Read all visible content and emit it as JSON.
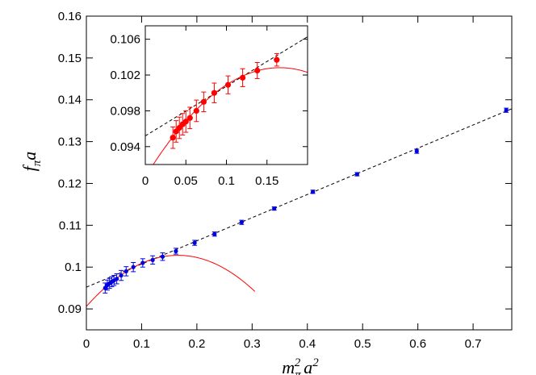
{
  "chart_data": [
    {
      "type": "scatter",
      "title": "",
      "xlabel": "m_π²a²",
      "ylabel": "f_πa",
      "xlabel_parts": {
        "base": "m",
        "sub": "π",
        "sup1": "2",
        "mid": "a",
        "sup2": "2"
      },
      "ylabel_parts": {
        "base": "f",
        "sub": "π",
        "tail": "a"
      },
      "xlim": [
        0,
        0.77
      ],
      "ylim": [
        0.085,
        0.16
      ],
      "xticks": [
        0,
        0.1,
        0.2,
        0.3,
        0.4,
        0.5,
        0.6,
        0.7
      ],
      "xtick_labels": [
        "0",
        "0.1",
        "0.2",
        "0.3",
        "0.4",
        "0.5",
        "0.6",
        "0.7"
      ],
      "yticks": [
        0.09,
        0.1,
        0.11,
        0.12,
        0.13,
        0.14,
        0.15,
        0.16
      ],
      "ytick_labels": [
        "0.09",
        "0.1",
        "0.11",
        "0.12",
        "0.13",
        "0.14",
        "0.15",
        "0.16"
      ],
      "grid": false,
      "legend": "none",
      "series": [
        {
          "color": "#0000e0",
          "marker": "circle",
          "x": [
            0.034,
            0.038,
            0.042,
            0.046,
            0.05,
            0.055,
            0.063,
            0.072,
            0.085,
            0.102,
            0.12,
            0.138,
            0.162,
            0.196,
            0.232,
            0.281,
            0.34,
            0.41,
            0.49,
            0.598,
            0.76
          ],
          "y": [
            0.095,
            0.0957,
            0.0961,
            0.0965,
            0.0968,
            0.0972,
            0.098,
            0.099,
            0.1,
            0.101,
            0.1017,
            0.1025,
            0.1038,
            0.1058,
            0.1079,
            0.1107,
            0.114,
            0.118,
            0.1222,
            0.1277,
            0.1375
          ],
          "yerr": [
            0.0012,
            0.0012,
            0.0012,
            0.0012,
            0.0012,
            0.0012,
            0.0012,
            0.0011,
            0.0011,
            0.001,
            0.001,
            0.0009,
            0.0007,
            0.0006,
            0.0005,
            0.0005,
            0.0004,
            0.0004,
            0.0004,
            0.0005,
            0.0005
          ]
        }
      ],
      "lines": [
        {
          "kind": "linear-fit",
          "style": "dashed",
          "color": "#000000",
          "intercept": 0.0952,
          "slope": 0.0554,
          "x_range": [
            0,
            0.77
          ]
        },
        {
          "kind": "curve-fit",
          "style": "solid",
          "color": "#ff0000",
          "a": 0.0906,
          "b": 0.1475,
          "c": -0.4451,
          "x_range": [
            0,
            0.305
          ]
        }
      ]
    },
    {
      "type": "scatter",
      "title": "",
      "role": "inset",
      "xlim": [
        0,
        0.2
      ],
      "ylim": [
        0.092,
        0.1075
      ],
      "xticks": [
        0,
        0.05,
        0.1,
        0.15
      ],
      "xtick_labels": [
        "0",
        "0.05",
        "0.1",
        "0.15"
      ],
      "yticks": [
        0.094,
        0.098,
        0.102,
        0.106
      ],
      "ytick_labels": [
        "0.094",
        "0.098",
        "0.102",
        "0.106"
      ],
      "grid": false,
      "series": [
        {
          "color": "#ff0000",
          "marker": "circle",
          "x": [
            0.034,
            0.038,
            0.042,
            0.046,
            0.05,
            0.055,
            0.063,
            0.072,
            0.085,
            0.102,
            0.12,
            0.138,
            0.162
          ],
          "y": [
            0.095,
            0.0957,
            0.0961,
            0.0965,
            0.0968,
            0.0972,
            0.098,
            0.099,
            0.1,
            0.1009,
            0.1017,
            0.1025,
            0.1037
          ],
          "yerr": [
            0.0012,
            0.0012,
            0.0012,
            0.0012,
            0.0012,
            0.0012,
            0.0012,
            0.0011,
            0.0011,
            0.001,
            0.001,
            0.0009,
            0.0007
          ]
        }
      ],
      "lines": [
        {
          "kind": "linear-fit",
          "style": "dashed",
          "color": "#000000",
          "intercept": 0.0952,
          "slope": 0.0554,
          "x_range": [
            0,
            0.2
          ]
        },
        {
          "kind": "curve-fit",
          "style": "solid",
          "color": "#ff0000",
          "a": 0.0906,
          "b": 0.1475,
          "c": -0.4451,
          "x_range": [
            0.005,
            0.2
          ]
        }
      ]
    }
  ]
}
